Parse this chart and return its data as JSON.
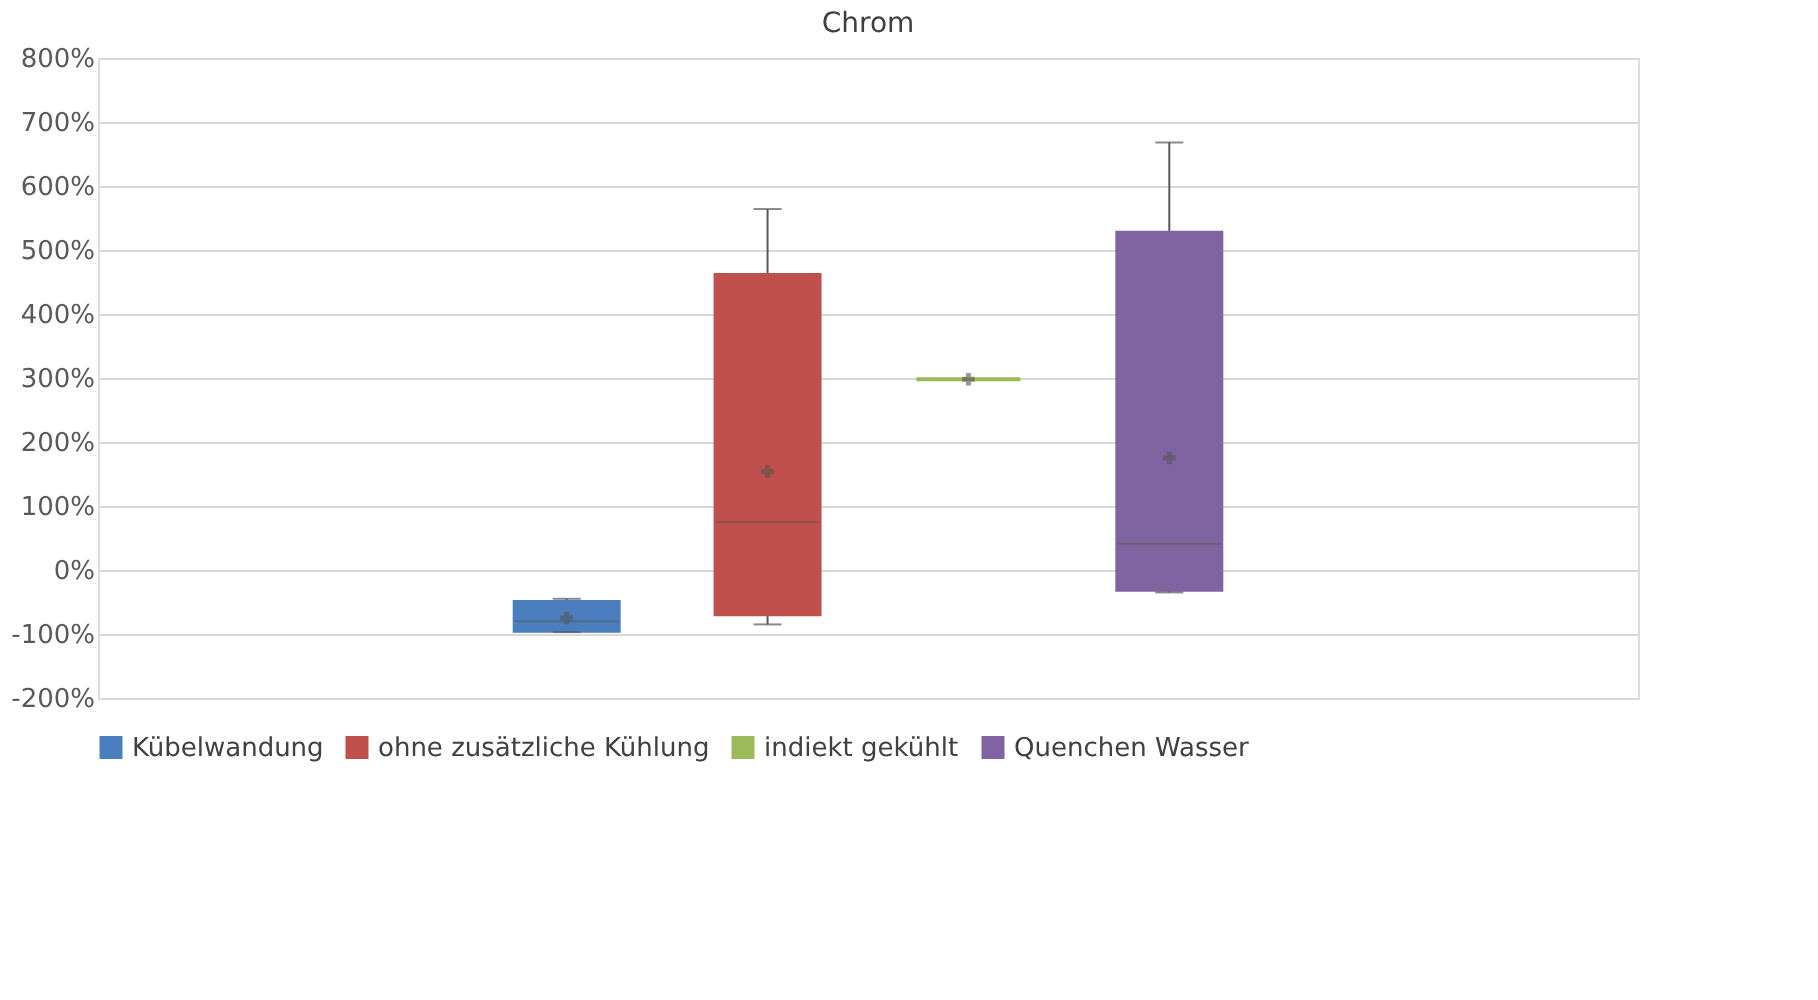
{
  "chart_data": {
    "type": "box",
    "title": "Chrom",
    "categories": [
      null
    ],
    "series": [
      {
        "name": "Kübelwandung",
        "color": "#4a7ebf",
        "boxes": [
          {
            "low": -97,
            "q1": -95,
            "median": -80,
            "q3": -50,
            "high": -45,
            "mean": -75
          }
        ]
      },
      {
        "name": "ohne zusätzliche Kühlung",
        "color": "#c0504d",
        "boxes": [
          {
            "low": -85,
            "q1": -69,
            "median": 75,
            "q3": 461,
            "high": 564,
            "mean": 154
          }
        ]
      },
      {
        "name": "indiekt gekühlt",
        "color": "#9bbb59",
        "boxes": [
          {
            "low": 298,
            "q1": 298,
            "median": 298,
            "q3": 298,
            "high": 298,
            "mean": 298
          }
        ]
      },
      {
        "name": "Quenchen Wasser",
        "color": "#8064a2",
        "boxes": [
          {
            "low": -35,
            "q1": -31,
            "median": 41,
            "q3": 527,
            "high": 668,
            "mean": 175
          }
        ]
      }
    ],
    "ylim": [
      -200,
      800
    ],
    "yticks": [
      {
        "value": -200,
        "label": "-200%"
      },
      {
        "value": -100,
        "label": "-100%"
      },
      {
        "value": 0,
        "label": "0%"
      },
      {
        "value": 100,
        "label": "100%"
      },
      {
        "value": 200,
        "label": "200%"
      },
      {
        "value": 300,
        "label": "300%"
      },
      {
        "value": 400,
        "label": "400%"
      },
      {
        "value": 500,
        "label": "500%"
      },
      {
        "value": 600,
        "label": "600%"
      },
      {
        "value": 700,
        "label": "700%"
      },
      {
        "value": 800,
        "label": "800%"
      }
    ],
    "grid": "y",
    "legend": "bottom",
    "tick_labels": "y",
    "marker": "cross"
  }
}
